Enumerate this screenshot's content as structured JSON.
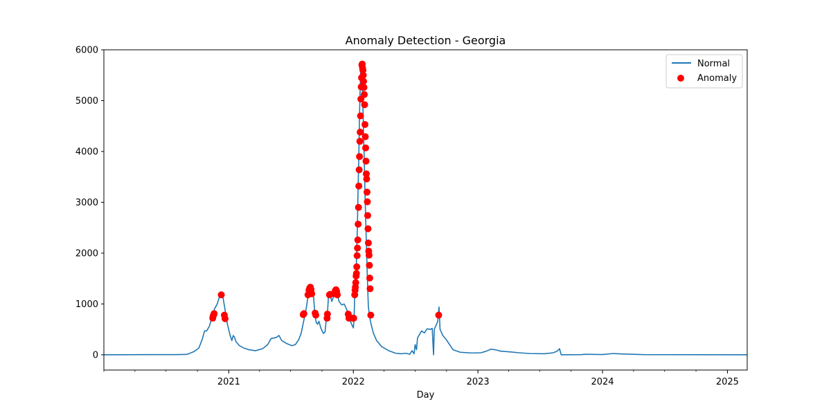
{
  "chart_data": {
    "type": "line",
    "title": "Anomaly Detection - Georgia",
    "xlabel": "Day",
    "ylabel": "",
    "x_range": [
      "2020-01-01",
      "2025-02-28"
    ],
    "ylim": [
      -300,
      6000
    ],
    "y_ticks": [
      0,
      1000,
      2000,
      3000,
      4000,
      5000,
      6000
    ],
    "x_ticks": [
      {
        "date": "2021-01-01",
        "label": "2021"
      },
      {
        "date": "2022-01-01",
        "label": "2022"
      },
      {
        "date": "2023-01-01",
        "label": "2023"
      },
      {
        "date": "2024-01-01",
        "label": "2024"
      },
      {
        "date": "2025-01-01",
        "label": "2025"
      }
    ],
    "grid": false,
    "legend_position": "top-right",
    "series": [
      {
        "name": "Normal",
        "kind": "line",
        "color": "#1f77b4",
        "points": [
          [
            "2020-01-01",
            0
          ],
          [
            "2020-05-01",
            3
          ],
          [
            "2020-08-01",
            3
          ],
          [
            "2020-09-01",
            8
          ],
          [
            "2020-09-20",
            60
          ],
          [
            "2020-10-05",
            130
          ],
          [
            "2020-10-15",
            300
          ],
          [
            "2020-10-22",
            470
          ],
          [
            "2020-10-28",
            470
          ],
          [
            "2020-11-05",
            560
          ],
          [
            "2020-11-12",
            720
          ],
          [
            "2020-11-20",
            900
          ],
          [
            "2020-11-28",
            1000
          ],
          [
            "2020-12-05",
            1150
          ],
          [
            "2020-12-10",
            1180
          ],
          [
            "2020-12-15",
            1130
          ],
          [
            "2020-12-22",
            850
          ],
          [
            "2020-12-28",
            600
          ],
          [
            "2021-01-05",
            380
          ],
          [
            "2021-01-10",
            280
          ],
          [
            "2021-01-14",
            380
          ],
          [
            "2021-01-18",
            340
          ],
          [
            "2021-01-22",
            260
          ],
          [
            "2021-02-01",
            180
          ],
          [
            "2021-02-15",
            130
          ],
          [
            "2021-03-01",
            100
          ],
          [
            "2021-03-20",
            80
          ],
          [
            "2021-04-10",
            120
          ],
          [
            "2021-04-25",
            200
          ],
          [
            "2021-05-05",
            320
          ],
          [
            "2021-05-20",
            340
          ],
          [
            "2021-05-28",
            380
          ],
          [
            "2021-06-05",
            280
          ],
          [
            "2021-06-20",
            220
          ],
          [
            "2021-07-05",
            180
          ],
          [
            "2021-07-15",
            200
          ],
          [
            "2021-07-25",
            300
          ],
          [
            "2021-08-01",
            420
          ],
          [
            "2021-08-08",
            650
          ],
          [
            "2021-08-13",
            800
          ],
          [
            "2021-08-18",
            1000
          ],
          [
            "2021-08-22",
            1200
          ],
          [
            "2021-08-27",
            1320
          ],
          [
            "2021-09-01",
            1300
          ],
          [
            "2021-09-06",
            1180
          ],
          [
            "2021-09-10",
            820
          ],
          [
            "2021-09-14",
            640
          ],
          [
            "2021-09-18",
            600
          ],
          [
            "2021-09-22",
            660
          ],
          [
            "2021-09-28",
            520
          ],
          [
            "2021-10-05",
            420
          ],
          [
            "2021-10-10",
            450
          ],
          [
            "2021-10-14",
            720
          ],
          [
            "2021-10-17",
            800
          ],
          [
            "2021-10-20",
            1150
          ],
          [
            "2021-10-25",
            1180
          ],
          [
            "2021-10-30",
            1050
          ],
          [
            "2021-11-04",
            1150
          ],
          [
            "2021-11-10",
            1270
          ],
          [
            "2021-11-15",
            1200
          ],
          [
            "2021-11-20",
            1050
          ],
          [
            "2021-11-28",
            980
          ],
          [
            "2021-12-05",
            1000
          ],
          [
            "2021-12-12",
            900
          ],
          [
            "2021-12-18",
            780
          ],
          [
            "2021-12-22",
            680
          ],
          [
            "2021-12-27",
            600
          ],
          [
            "2022-01-01",
            530
          ],
          [
            "2022-01-03",
            690
          ],
          [
            "2022-01-05",
            1180
          ],
          [
            "2022-01-07",
            1330
          ],
          [
            "2022-01-09",
            1600
          ],
          [
            "2022-01-11",
            2100
          ],
          [
            "2022-01-13",
            2570
          ],
          [
            "2022-01-15",
            3320
          ],
          [
            "2022-01-17",
            3900
          ],
          [
            "2022-01-19",
            4700
          ],
          [
            "2022-01-21",
            5270
          ],
          [
            "2022-01-23",
            5700
          ],
          [
            "2022-01-25",
            5650
          ],
          [
            "2022-01-27",
            5260
          ],
          [
            "2022-01-29",
            4900
          ],
          [
            "2022-01-31",
            4300
          ],
          [
            "2022-02-02",
            3800
          ],
          [
            "2022-02-04",
            3200
          ],
          [
            "2022-02-06",
            2700
          ],
          [
            "2022-02-08",
            2200
          ],
          [
            "2022-02-10",
            1760
          ],
          [
            "2022-02-12",
            1300
          ],
          [
            "2022-02-14",
            950
          ],
          [
            "2022-02-17",
            780
          ],
          [
            "2022-02-22",
            600
          ],
          [
            "2022-03-01",
            420
          ],
          [
            "2022-03-10",
            280
          ],
          [
            "2022-03-25",
            160
          ],
          [
            "2022-04-15",
            80
          ],
          [
            "2022-05-05",
            30
          ],
          [
            "2022-05-20",
            20
          ],
          [
            "2022-06-05",
            30
          ],
          [
            "2022-06-15",
            10
          ],
          [
            "2022-06-22",
            80
          ],
          [
            "2022-06-28",
            20
          ],
          [
            "2022-07-01",
            200
          ],
          [
            "2022-07-05",
            100
          ],
          [
            "2022-07-08",
            330
          ],
          [
            "2022-07-12",
            380
          ],
          [
            "2022-07-20",
            470
          ],
          [
            "2022-07-28",
            430
          ],
          [
            "2022-08-05",
            510
          ],
          [
            "2022-08-15",
            500
          ],
          [
            "2022-08-20",
            520
          ],
          [
            "2022-08-24",
            0
          ],
          [
            "2022-08-26",
            500
          ],
          [
            "2022-09-05",
            650
          ],
          [
            "2022-09-09",
            940
          ],
          [
            "2022-09-12",
            500
          ],
          [
            "2022-09-20",
            380
          ],
          [
            "2022-09-30",
            300
          ],
          [
            "2022-10-10",
            200
          ],
          [
            "2022-10-20",
            100
          ],
          [
            "2022-11-10",
            50
          ],
          [
            "2022-12-15",
            35
          ],
          [
            "2023-01-10",
            40
          ],
          [
            "2023-01-25",
            70
          ],
          [
            "2023-02-08",
            110
          ],
          [
            "2023-02-20",
            100
          ],
          [
            "2023-03-10",
            70
          ],
          [
            "2023-04-01",
            60
          ],
          [
            "2023-05-01",
            40
          ],
          [
            "2023-06-01",
            25
          ],
          [
            "2023-07-15",
            20
          ],
          [
            "2023-08-10",
            40
          ],
          [
            "2023-08-22",
            75
          ],
          [
            "2023-08-28",
            120
          ],
          [
            "2023-09-02",
            0
          ],
          [
            "2023-11-01",
            3
          ],
          [
            "2023-11-10",
            10
          ],
          [
            "2024-01-01",
            5
          ],
          [
            "2024-02-01",
            25
          ],
          [
            "2024-03-01",
            15
          ],
          [
            "2024-05-01",
            3
          ],
          [
            "2025-02-28",
            0
          ]
        ]
      },
      {
        "name": "Anomaly",
        "kind": "scatter",
        "color": "#ff0000",
        "points": [
          [
            "2020-11-15",
            720
          ],
          [
            "2020-11-16",
            760
          ],
          [
            "2020-11-18",
            790
          ],
          [
            "2020-11-19",
            810
          ],
          [
            "2020-12-10",
            1180
          ],
          [
            "2020-12-19",
            780
          ],
          [
            "2020-12-21",
            710
          ],
          [
            "2021-08-07",
            790
          ],
          [
            "2021-08-09",
            810
          ],
          [
            "2021-08-21",
            1180
          ],
          [
            "2021-08-24",
            1270
          ],
          [
            "2021-08-26",
            1310
          ],
          [
            "2021-08-28",
            1330
          ],
          [
            "2021-08-30",
            1280
          ],
          [
            "2021-09-01",
            1200
          ],
          [
            "2021-09-11",
            820
          ],
          [
            "2021-09-13",
            780
          ],
          [
            "2021-10-16",
            720
          ],
          [
            "2021-10-17",
            800
          ],
          [
            "2021-10-23",
            1180
          ],
          [
            "2021-10-25",
            1190
          ],
          [
            "2021-11-07",
            1200
          ],
          [
            "2021-11-09",
            1260
          ],
          [
            "2021-11-11",
            1280
          ],
          [
            "2021-11-13",
            1250
          ],
          [
            "2021-11-15",
            1180
          ],
          [
            "2021-12-17",
            800
          ],
          [
            "2021-12-19",
            720
          ],
          [
            "2021-12-30",
            720
          ],
          [
            "2022-01-02",
            720
          ],
          [
            "2022-01-05",
            1180
          ],
          [
            "2022-01-06",
            1270
          ],
          [
            "2022-01-07",
            1330
          ],
          [
            "2022-01-08",
            1420
          ],
          [
            "2022-01-09",
            1550
          ],
          [
            "2022-01-10",
            1600
          ],
          [
            "2022-01-11",
            1730
          ],
          [
            "2022-01-12",
            1950
          ],
          [
            "2022-01-13",
            2100
          ],
          [
            "2022-01-14",
            2260
          ],
          [
            "2022-01-15",
            2570
          ],
          [
            "2022-01-16",
            2900
          ],
          [
            "2022-01-17",
            3320
          ],
          [
            "2022-01-18",
            3640
          ],
          [
            "2022-01-19",
            3900
          ],
          [
            "2022-01-20",
            4200
          ],
          [
            "2022-01-21",
            4380
          ],
          [
            "2022-01-22",
            4700
          ],
          [
            "2022-01-23",
            5030
          ],
          [
            "2022-01-24",
            5270
          ],
          [
            "2022-01-25",
            5450
          ],
          [
            "2022-01-26",
            5700
          ],
          [
            "2022-01-27",
            5720
          ],
          [
            "2022-01-28",
            5640
          ],
          [
            "2022-01-29",
            5600
          ],
          [
            "2022-01-30",
            5500
          ],
          [
            "2022-01-31",
            5380
          ],
          [
            "2022-02-01",
            5260
          ],
          [
            "2022-02-02",
            5120
          ],
          [
            "2022-02-03",
            4920
          ],
          [
            "2022-02-04",
            4530
          ],
          [
            "2022-02-05",
            4290
          ],
          [
            "2022-02-06",
            4070
          ],
          [
            "2022-02-07",
            3810
          ],
          [
            "2022-02-08",
            3560
          ],
          [
            "2022-02-09",
            3460
          ],
          [
            "2022-02-10",
            3200
          ],
          [
            "2022-02-11",
            3010
          ],
          [
            "2022-02-12",
            2740
          ],
          [
            "2022-02-13",
            2480
          ],
          [
            "2022-02-14",
            2200
          ],
          [
            "2022-02-15",
            2040
          ],
          [
            "2022-02-16",
            1960
          ],
          [
            "2022-02-17",
            1760
          ],
          [
            "2022-02-18",
            1510
          ],
          [
            "2022-02-19",
            1300
          ],
          [
            "2022-02-21",
            780
          ],
          [
            "2022-09-08",
            780
          ]
        ]
      }
    ]
  }
}
